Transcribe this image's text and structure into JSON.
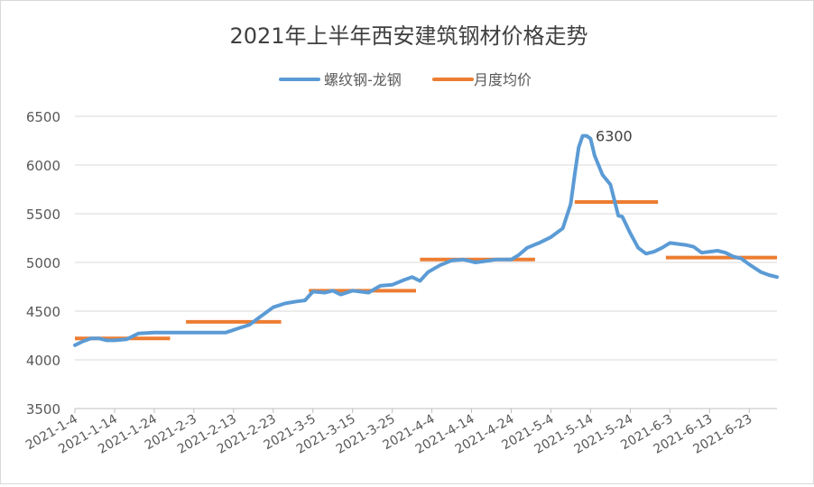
{
  "chart_data": {
    "type": "line",
    "title": "2021年上半年西安建筑钢材价格走势",
    "xlabel": "",
    "ylabel": "",
    "ylim": [
      3500,
      6500
    ],
    "yticks": [
      3500,
      4000,
      4500,
      5000,
      5500,
      6000,
      6500
    ],
    "xlim": [
      "2021-1-4",
      "2021-6-30"
    ],
    "xticks": [
      "2021-1-4",
      "2021-1-14",
      "2021-1-24",
      "2021-2-3",
      "2021-2-13",
      "2021-2-23",
      "2021-3-5",
      "2021-3-15",
      "2021-3-25",
      "2021-4-4",
      "2021-4-14",
      "2021-4-24",
      "2021-5-4",
      "2021-5-14",
      "2021-5-24",
      "2021-6-3",
      "2021-6-13",
      "2021-6-23"
    ],
    "grid": true,
    "legend_position": "top",
    "annotations": [
      {
        "text": "6300",
        "x": "2021-5-13",
        "y": 6300
      }
    ],
    "series": [
      {
        "name": "螺纹钢-龙钢",
        "color": "#5B9BD5",
        "points": [
          [
            "2021-1-4",
            4150
          ],
          [
            "2021-1-6",
            4190
          ],
          [
            "2021-1-8",
            4220
          ],
          [
            "2021-1-10",
            4220
          ],
          [
            "2021-1-12",
            4200
          ],
          [
            "2021-1-14",
            4200
          ],
          [
            "2021-1-17",
            4210
          ],
          [
            "2021-1-20",
            4270
          ],
          [
            "2021-1-24",
            4280
          ],
          [
            "2021-1-28",
            4280
          ],
          [
            "2021-2-1",
            4280
          ],
          [
            "2021-2-5",
            4280
          ],
          [
            "2021-2-9",
            4280
          ],
          [
            "2021-2-11",
            4280
          ],
          [
            "2021-2-14",
            4320
          ],
          [
            "2021-2-17",
            4360
          ],
          [
            "2021-2-20",
            4450
          ],
          [
            "2021-2-23",
            4540
          ],
          [
            "2021-2-26",
            4580
          ],
          [
            "2021-3-1",
            4600
          ],
          [
            "2021-3-3",
            4610
          ],
          [
            "2021-3-5",
            4700
          ],
          [
            "2021-3-8",
            4690
          ],
          [
            "2021-3-10",
            4710
          ],
          [
            "2021-3-12",
            4670
          ],
          [
            "2021-3-15",
            4710
          ],
          [
            "2021-3-17",
            4700
          ],
          [
            "2021-3-19",
            4690
          ],
          [
            "2021-3-22",
            4760
          ],
          [
            "2021-3-25",
            4770
          ],
          [
            "2021-3-28",
            4820
          ],
          [
            "2021-3-30",
            4850
          ],
          [
            "2021-4-1",
            4810
          ],
          [
            "2021-4-3",
            4900
          ],
          [
            "2021-4-6",
            4970
          ],
          [
            "2021-4-9",
            5020
          ],
          [
            "2021-4-12",
            5030
          ],
          [
            "2021-4-15",
            5000
          ],
          [
            "2021-4-17",
            5010
          ],
          [
            "2021-4-20",
            5030
          ],
          [
            "2021-4-24",
            5030
          ],
          [
            "2021-4-26",
            5080
          ],
          [
            "2021-4-28",
            5150
          ],
          [
            "2021-5-1",
            5200
          ],
          [
            "2021-5-4",
            5260
          ],
          [
            "2021-5-7",
            5350
          ],
          [
            "2021-5-9",
            5600
          ],
          [
            "2021-5-10",
            5900
          ],
          [
            "2021-5-11",
            6180
          ],
          [
            "2021-5-12",
            6300
          ],
          [
            "2021-5-13",
            6300
          ],
          [
            "2021-5-14",
            6270
          ],
          [
            "2021-5-15",
            6100
          ],
          [
            "2021-5-17",
            5900
          ],
          [
            "2021-5-19",
            5800
          ],
          [
            "2021-5-21",
            5480
          ],
          [
            "2021-5-22",
            5470
          ],
          [
            "2021-5-24",
            5300
          ],
          [
            "2021-5-26",
            5150
          ],
          [
            "2021-5-28",
            5090
          ],
          [
            "2021-5-30",
            5110
          ],
          [
            "2021-6-1",
            5150
          ],
          [
            "2021-6-3",
            5200
          ],
          [
            "2021-6-5",
            5190
          ],
          [
            "2021-6-7",
            5180
          ],
          [
            "2021-6-9",
            5160
          ],
          [
            "2021-6-11",
            5100
          ],
          [
            "2021-6-13",
            5110
          ],
          [
            "2021-6-15",
            5120
          ],
          [
            "2021-6-17",
            5100
          ],
          [
            "2021-6-19",
            5060
          ],
          [
            "2021-6-21",
            5040
          ],
          [
            "2021-6-23",
            4980
          ],
          [
            "2021-6-26",
            4900
          ],
          [
            "2021-6-28",
            4870
          ],
          [
            "2021-6-30",
            4850
          ]
        ]
      },
      {
        "name": "月度均价",
        "color": "#ED7D31",
        "segments": [
          {
            "start": "2021-1-4",
            "end": "2021-1-28",
            "value": 4220
          },
          {
            "start": "2021-2-1",
            "end": "2021-2-25",
            "value": 4390
          },
          {
            "start": "2021-3-4",
            "end": "2021-3-31",
            "value": 4710
          },
          {
            "start": "2021-4-1",
            "end": "2021-4-30",
            "value": 5030
          },
          {
            "start": "2021-5-10",
            "end": "2021-5-31",
            "value": 5620
          },
          {
            "start": "2021-6-2",
            "end": "2021-6-30",
            "value": 5050
          }
        ]
      }
    ]
  }
}
